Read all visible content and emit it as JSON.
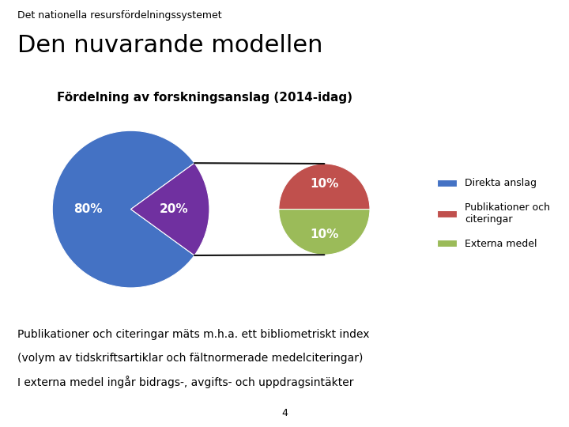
{
  "chart_data": [
    {
      "type": "pie",
      "title": "Den nuvarande modellen",
      "subtitle": "Det nationella resursfördelningssystemet",
      "categories": [
        "Direkta anslag",
        null
      ],
      "values": [
        80,
        20
      ],
      "value_labels": [
        "80%",
        "20%"
      ],
      "colors": [
        "#4472C4",
        "#7030A0"
      ],
      "data_labels": true,
      "legend": "center right",
      "annotations": [
        "Fördelning av forskningsanslag (2014-idag)",
        "Publikationer och citeringar mäts m.h.a. ett bibliometriskt index",
        "(volym av tidskriftsartiklar och fältnormerade medelciteringar)",
        "I externa medel ingår bidrags-, avgifts- och uppdragsintäkter",
        "4"
      ]
    },
    {
      "type": "pie",
      "categories": [
        "Publikationer och\nciteringar",
        "Externa medel"
      ],
      "values": [
        10,
        10
      ],
      "value_labels": [
        "10%",
        "10%"
      ],
      "colors": [
        "#C0504D",
        "#9BBB59"
      ],
      "data_labels": true
    }
  ]
}
